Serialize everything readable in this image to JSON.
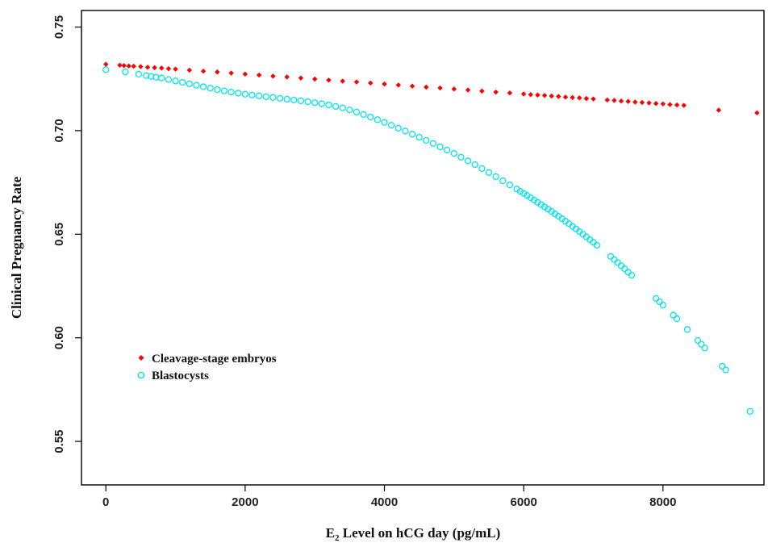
{
  "chart_data": {
    "type": "scatter",
    "xlabel": {
      "main": "E",
      "sub": "2",
      "rest": " Level on hCG day (pg/mL)"
    },
    "ylabel": "Clinical Pregnancy Rate",
    "xlim": [
      -350,
      9450
    ],
    "ylim": [
      0.529,
      0.758
    ],
    "x_ticks": [
      0,
      2000,
      4000,
      6000,
      8000
    ],
    "x_tick_labels": [
      "0",
      "2000",
      "4000",
      "6000",
      "8000"
    ],
    "y_ticks": [
      0.55,
      0.6,
      0.65,
      0.7,
      0.75
    ],
    "y_tick_labels": [
      "0.55",
      "0.60",
      "0.65",
      "0.70",
      "0.75"
    ],
    "grid": false,
    "legend_position": "lower-left",
    "series": [
      {
        "name": "Cleavage-stage embryos",
        "color": "#ff0000",
        "marker": "filled-diamond",
        "x": [
          0,
          200,
          260,
          330,
          400,
          500,
          600,
          700,
          800,
          900,
          1000,
          1200,
          1400,
          1600,
          1800,
          2000,
          2200,
          2400,
          2600,
          2800,
          3000,
          3200,
          3400,
          3600,
          3800,
          4000,
          4200,
          4400,
          4600,
          4800,
          5000,
          5200,
          5400,
          5600,
          5800,
          6000,
          6100,
          6200,
          6300,
          6400,
          6500,
          6600,
          6700,
          6800,
          6900,
          7000,
          7200,
          7300,
          7400,
          7500,
          7600,
          7700,
          7800,
          7900,
          8000,
          8100,
          8200,
          8300,
          8800,
          9350
        ],
        "y": [
          0.732,
          0.7316,
          0.7314,
          0.7312,
          0.7311,
          0.7309,
          0.7306,
          0.7304,
          0.7302,
          0.7299,
          0.7297,
          0.7292,
          0.7287,
          0.7283,
          0.7278,
          0.7273,
          0.7268,
          0.7263,
          0.7259,
          0.7254,
          0.7249,
          0.7244,
          0.7239,
          0.7235,
          0.723,
          0.7225,
          0.722,
          0.7215,
          0.721,
          0.7206,
          0.7201,
          0.7196,
          0.7191,
          0.7186,
          0.7182,
          0.7177,
          0.7174,
          0.7172,
          0.717,
          0.7167,
          0.7165,
          0.7162,
          0.716,
          0.7158,
          0.7155,
          0.7153,
          0.7148,
          0.7146,
          0.7143,
          0.7141,
          0.7138,
          0.7136,
          0.7134,
          0.7131,
          0.7129,
          0.7126,
          0.7124,
          0.7122,
          0.7099,
          0.7086
        ]
      },
      {
        "name": "Blastocysts",
        "color": "#00e5ee",
        "marker": "open-circle",
        "x": [
          0,
          280,
          470,
          580,
          650,
          720,
          800,
          900,
          1000,
          1100,
          1200,
          1300,
          1400,
          1500,
          1600,
          1700,
          1800,
          1900,
          2000,
          2100,
          2200,
          2300,
          2400,
          2500,
          2600,
          2700,
          2800,
          2900,
          3000,
          3100,
          3200,
          3300,
          3400,
          3500,
          3600,
          3700,
          3800,
          3900,
          4000,
          4100,
          4200,
          4300,
          4400,
          4500,
          4600,
          4700,
          4800,
          4900,
          5000,
          5100,
          5200,
          5300,
          5400,
          5500,
          5600,
          5700,
          5800,
          5900,
          5950,
          6000,
          6050,
          6100,
          6150,
          6200,
          6250,
          6300,
          6350,
          6400,
          6450,
          6500,
          6550,
          6600,
          6650,
          6700,
          6750,
          6800,
          6850,
          6900,
          6950,
          7000,
          7050,
          7250,
          7300,
          7350,
          7400,
          7450,
          7500,
          7550,
          7900,
          7950,
          8000,
          8150,
          8200,
          8350,
          8500,
          8550,
          8600,
          8850,
          8900,
          9250
        ],
        "y": [
          0.7294,
          0.7284,
          0.7273,
          0.7266,
          0.7262,
          0.7258,
          0.7254,
          0.7247,
          0.724,
          0.7233,
          0.7226,
          0.7219,
          0.7212,
          0.7205,
          0.7198,
          0.7192,
          0.7186,
          0.7181,
          0.7176,
          0.7172,
          0.7168,
          0.7164,
          0.716,
          0.7156,
          0.7152,
          0.7148,
          0.7144,
          0.714,
          0.7135,
          0.713,
          0.7124,
          0.7117,
          0.711,
          0.71,
          0.709,
          0.7078,
          0.7066,
          0.7053,
          0.704,
          0.7026,
          0.7012,
          0.6998,
          0.6983,
          0.6968,
          0.6953,
          0.6938,
          0.6922,
          0.6906,
          0.689,
          0.6872,
          0.6854,
          0.6836,
          0.6817,
          0.6798,
          0.6778,
          0.6758,
          0.6738,
          0.6718,
          0.6707,
          0.6697,
          0.6687,
          0.6676,
          0.6665,
          0.6654,
          0.6643,
          0.6632,
          0.6621,
          0.661,
          0.6598,
          0.6587,
          0.6575,
          0.6563,
          0.6551,
          0.6538,
          0.6526,
          0.6513,
          0.65,
          0.6487,
          0.6474,
          0.6461,
          0.6447,
          0.6393,
          0.6378,
          0.6363,
          0.6348,
          0.6333,
          0.6317,
          0.6302,
          0.619,
          0.6174,
          0.6158,
          0.6109,
          0.6092,
          0.604,
          0.5987,
          0.5969,
          0.5951,
          0.5863,
          0.5845,
          0.5645
        ]
      }
    ]
  }
}
